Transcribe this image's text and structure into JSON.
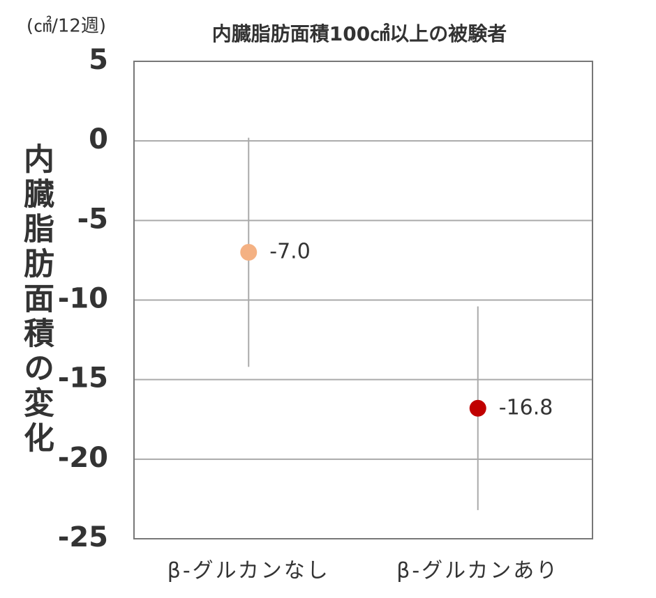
{
  "chart_data": {
    "type": "dot",
    "title": "内臓脂肪面積100㎠以上の被験者",
    "unit_label": "(㎠/12週)",
    "y_label": "内臓脂肪面積の変化",
    "categories": [
      "β-グルカンなし",
      "β-グルカンあり"
    ],
    "values": [
      -7,
      -16.8
    ],
    "value_labels": [
      "-7.0",
      "-16.8"
    ],
    "errors": [
      7.2,
      6.4
    ],
    "colors": [
      "#f4b183",
      "#c00000"
    ],
    "ylim": [
      5,
      -25
    ],
    "yticks": [
      5,
      0,
      -5,
      -10,
      -15,
      -20,
      -25
    ],
    "grid": true
  }
}
